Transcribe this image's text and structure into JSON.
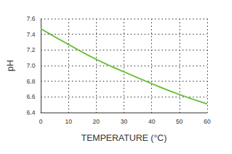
{
  "chart_data": {
    "type": "line",
    "xlabel": "TEMPERATURE (°C)",
    "ylabel": "pH",
    "x": [
      0,
      10,
      20,
      30,
      40,
      50,
      60
    ],
    "values": [
      7.47,
      7.27,
      7.08,
      6.92,
      6.77,
      6.63,
      6.51
    ],
    "color": "#6abf3c",
    "xlim": [
      0,
      60
    ],
    "xticks": [
      0,
      10,
      20,
      30,
      40,
      50,
      60
    ],
    "ylim": [
      6.4,
      7.6
    ],
    "yticks": [
      6.4,
      6.6,
      6.8,
      {
        "value": 7,
        "label": "7.0"
      },
      7.2,
      7.4,
      7.6
    ],
    "grid": true
  }
}
